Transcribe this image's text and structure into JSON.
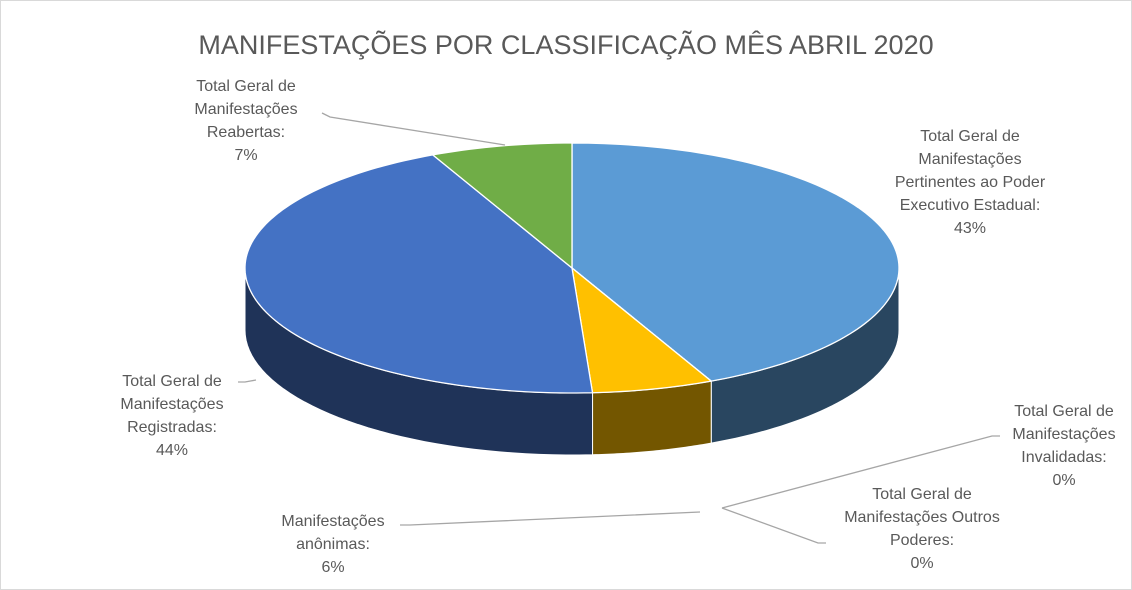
{
  "chart_data": {
    "type": "pie",
    "three_d": true,
    "title": "MANIFESTAÇÕES POR CLASSIFICAÇÃO MÊS ABRIL 2020",
    "categories": [
      "Total Geral de Manifestações Pertinentes ao Poder Executivo Estadual:",
      "Total Geral de Manifestações Invalidadas:",
      "Total Geral de Manifestações Outros Poderes:",
      "Manifestações anônimas:",
      "Total Geral de Manifestações Registradas:",
      "Total Geral de Manifestações Reabertas:"
    ],
    "values": [
      43,
      0,
      0,
      6,
      44,
      7
    ],
    "value_labels": [
      "43%",
      "0%",
      "0%",
      "6%",
      "44%",
      "7%"
    ],
    "colors": [
      "#5b9bd5",
      "#a5a5a5",
      "#ed7d31",
      "#ffc000",
      "#4472c4",
      "#70ad47"
    ]
  }
}
